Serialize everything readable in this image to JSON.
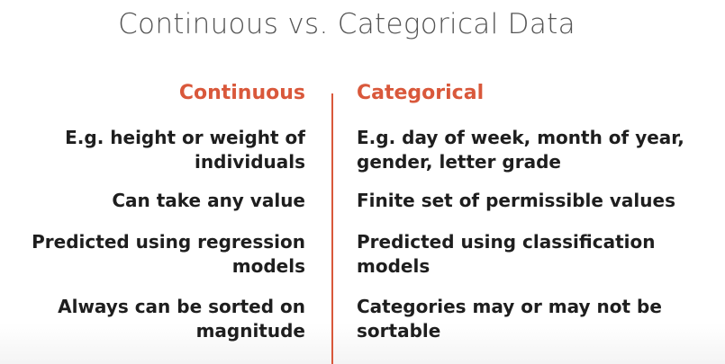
{
  "title": "Continuous vs. Categorical Data",
  "columns": {
    "left": {
      "heading": "Continuous",
      "items": [
        {
          "line1": "E.g. height or weight of",
          "line2": "individuals"
        },
        {
          "line1": "Can take any value",
          "line2": ""
        },
        {
          "line1": "Predicted using regression",
          "line2": "models"
        },
        {
          "line1": "Always can be sorted on",
          "line2": "magnitude"
        }
      ]
    },
    "right": {
      "heading": "Categorical",
      "items": [
        {
          "line1": "E.g. day of week, month of year,",
          "line2": "gender, letter grade"
        },
        {
          "line1": "Finite set of permissible values",
          "line2": ""
        },
        {
          "line1": "Predicted using classification",
          "line2": "models"
        },
        {
          "line1": "Categories may or may not be",
          "line2": "sortable"
        }
      ]
    }
  },
  "colors": {
    "accent": "#d9583b",
    "title": "#555555",
    "body_text": "#1e1e1e"
  }
}
